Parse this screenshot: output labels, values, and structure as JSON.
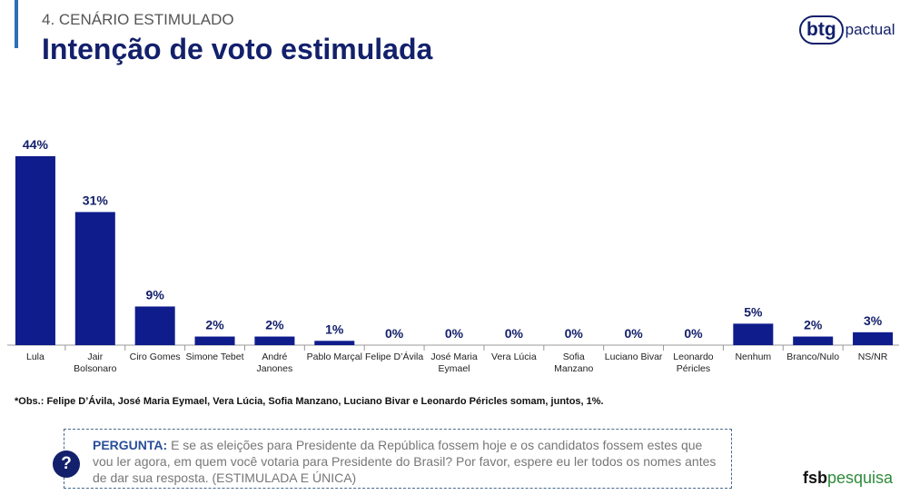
{
  "header": {
    "section": "4. CENÁRIO ESTIMULADO",
    "title": "Intenção de voto estimulada",
    "logo": {
      "main": "btg",
      "rest": "pactual"
    }
  },
  "chart_data": {
    "type": "bar",
    "categories": [
      "Lula",
      "Jair Bolsonaro",
      "Ciro Gomes",
      "Simone Tebet",
      "André Janones",
      "Pablo Marçal",
      "Felipe D’Ávila",
      "José Maria Eymael",
      "Vera Lúcia",
      "Sofia Manzano",
      "Luciano Bivar",
      "Leonardo Péricles",
      "Nenhum",
      "Branco/Nulo",
      "NS/NR"
    ],
    "values": [
      44,
      31,
      9,
      2,
      2,
      1,
      0,
      0,
      0,
      0,
      0,
      0,
      5,
      2,
      3
    ],
    "value_labels": [
      "44%",
      "31%",
      "9%",
      "2%",
      "2%",
      "1%",
      "0%",
      "0%",
      "0%",
      "0%",
      "0%",
      "0%",
      "5%",
      "2%",
      "3%"
    ],
    "color": "#0f1c8c"
  },
  "note": "*Obs.: Felipe D’Ávila, José Maria Eymael, Vera Lúcia, Sofia Manzano, Luciano Bivar e Leonardo Péricles somam, juntos, 1%.",
  "question": {
    "label": "PERGUNTA:",
    "text": "E se as eleições para Presidente da República fossem hoje e os candidatos fossem estes que vou ler agora, em quem você votaria para Presidente do Brasil? Por favor, espere eu ler todos os nomes antes de dar sua resposta. (ESTIMULADA E ÚNICA)",
    "icon": "?"
  },
  "footer_logo": {
    "a": "fsb",
    "b": "pesquisa"
  }
}
